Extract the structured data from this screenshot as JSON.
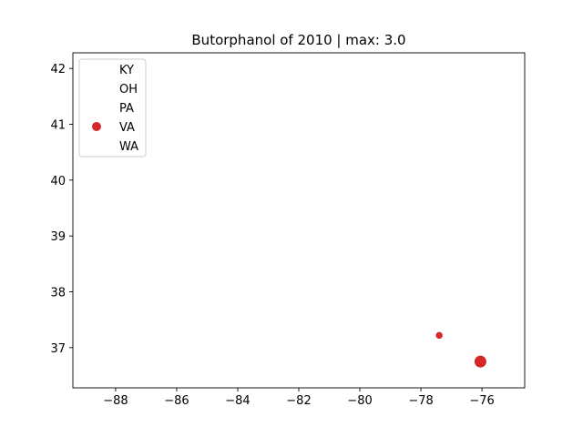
{
  "chart_data": {
    "type": "scatter",
    "title": "Butorphanol of 2010 | max: 3.0",
    "xlabel": "",
    "ylabel": "",
    "xlim": [
      -89.4,
      -74.6
    ],
    "ylim": [
      36.28,
      42.28
    ],
    "xticks": [
      -88,
      -86,
      -84,
      -82,
      -80,
      -78,
      -76
    ],
    "xtick_labels": [
      "−88",
      "−86",
      "−84",
      "−82",
      "−80",
      "−78",
      "−76"
    ],
    "yticks": [
      37,
      38,
      39,
      40,
      41,
      42
    ],
    "ytick_labels": [
      "37",
      "38",
      "39",
      "40",
      "41",
      "42"
    ],
    "grid": false,
    "legend_position": "top-left",
    "series": [
      {
        "name": "KY",
        "color": "#ffffff",
        "points": []
      },
      {
        "name": "OH",
        "color": "#ffffff",
        "points": []
      },
      {
        "name": "PA",
        "color": "#ffffff",
        "points": []
      },
      {
        "name": "VA",
        "color": "#d62728",
        "points": [
          {
            "x": -77.4,
            "y": 37.22,
            "value": 1.0
          },
          {
            "x": -76.05,
            "y": 36.75,
            "value": 3.0
          }
        ]
      },
      {
        "name": "WA",
        "color": "#ffffff",
        "points": []
      }
    ]
  }
}
